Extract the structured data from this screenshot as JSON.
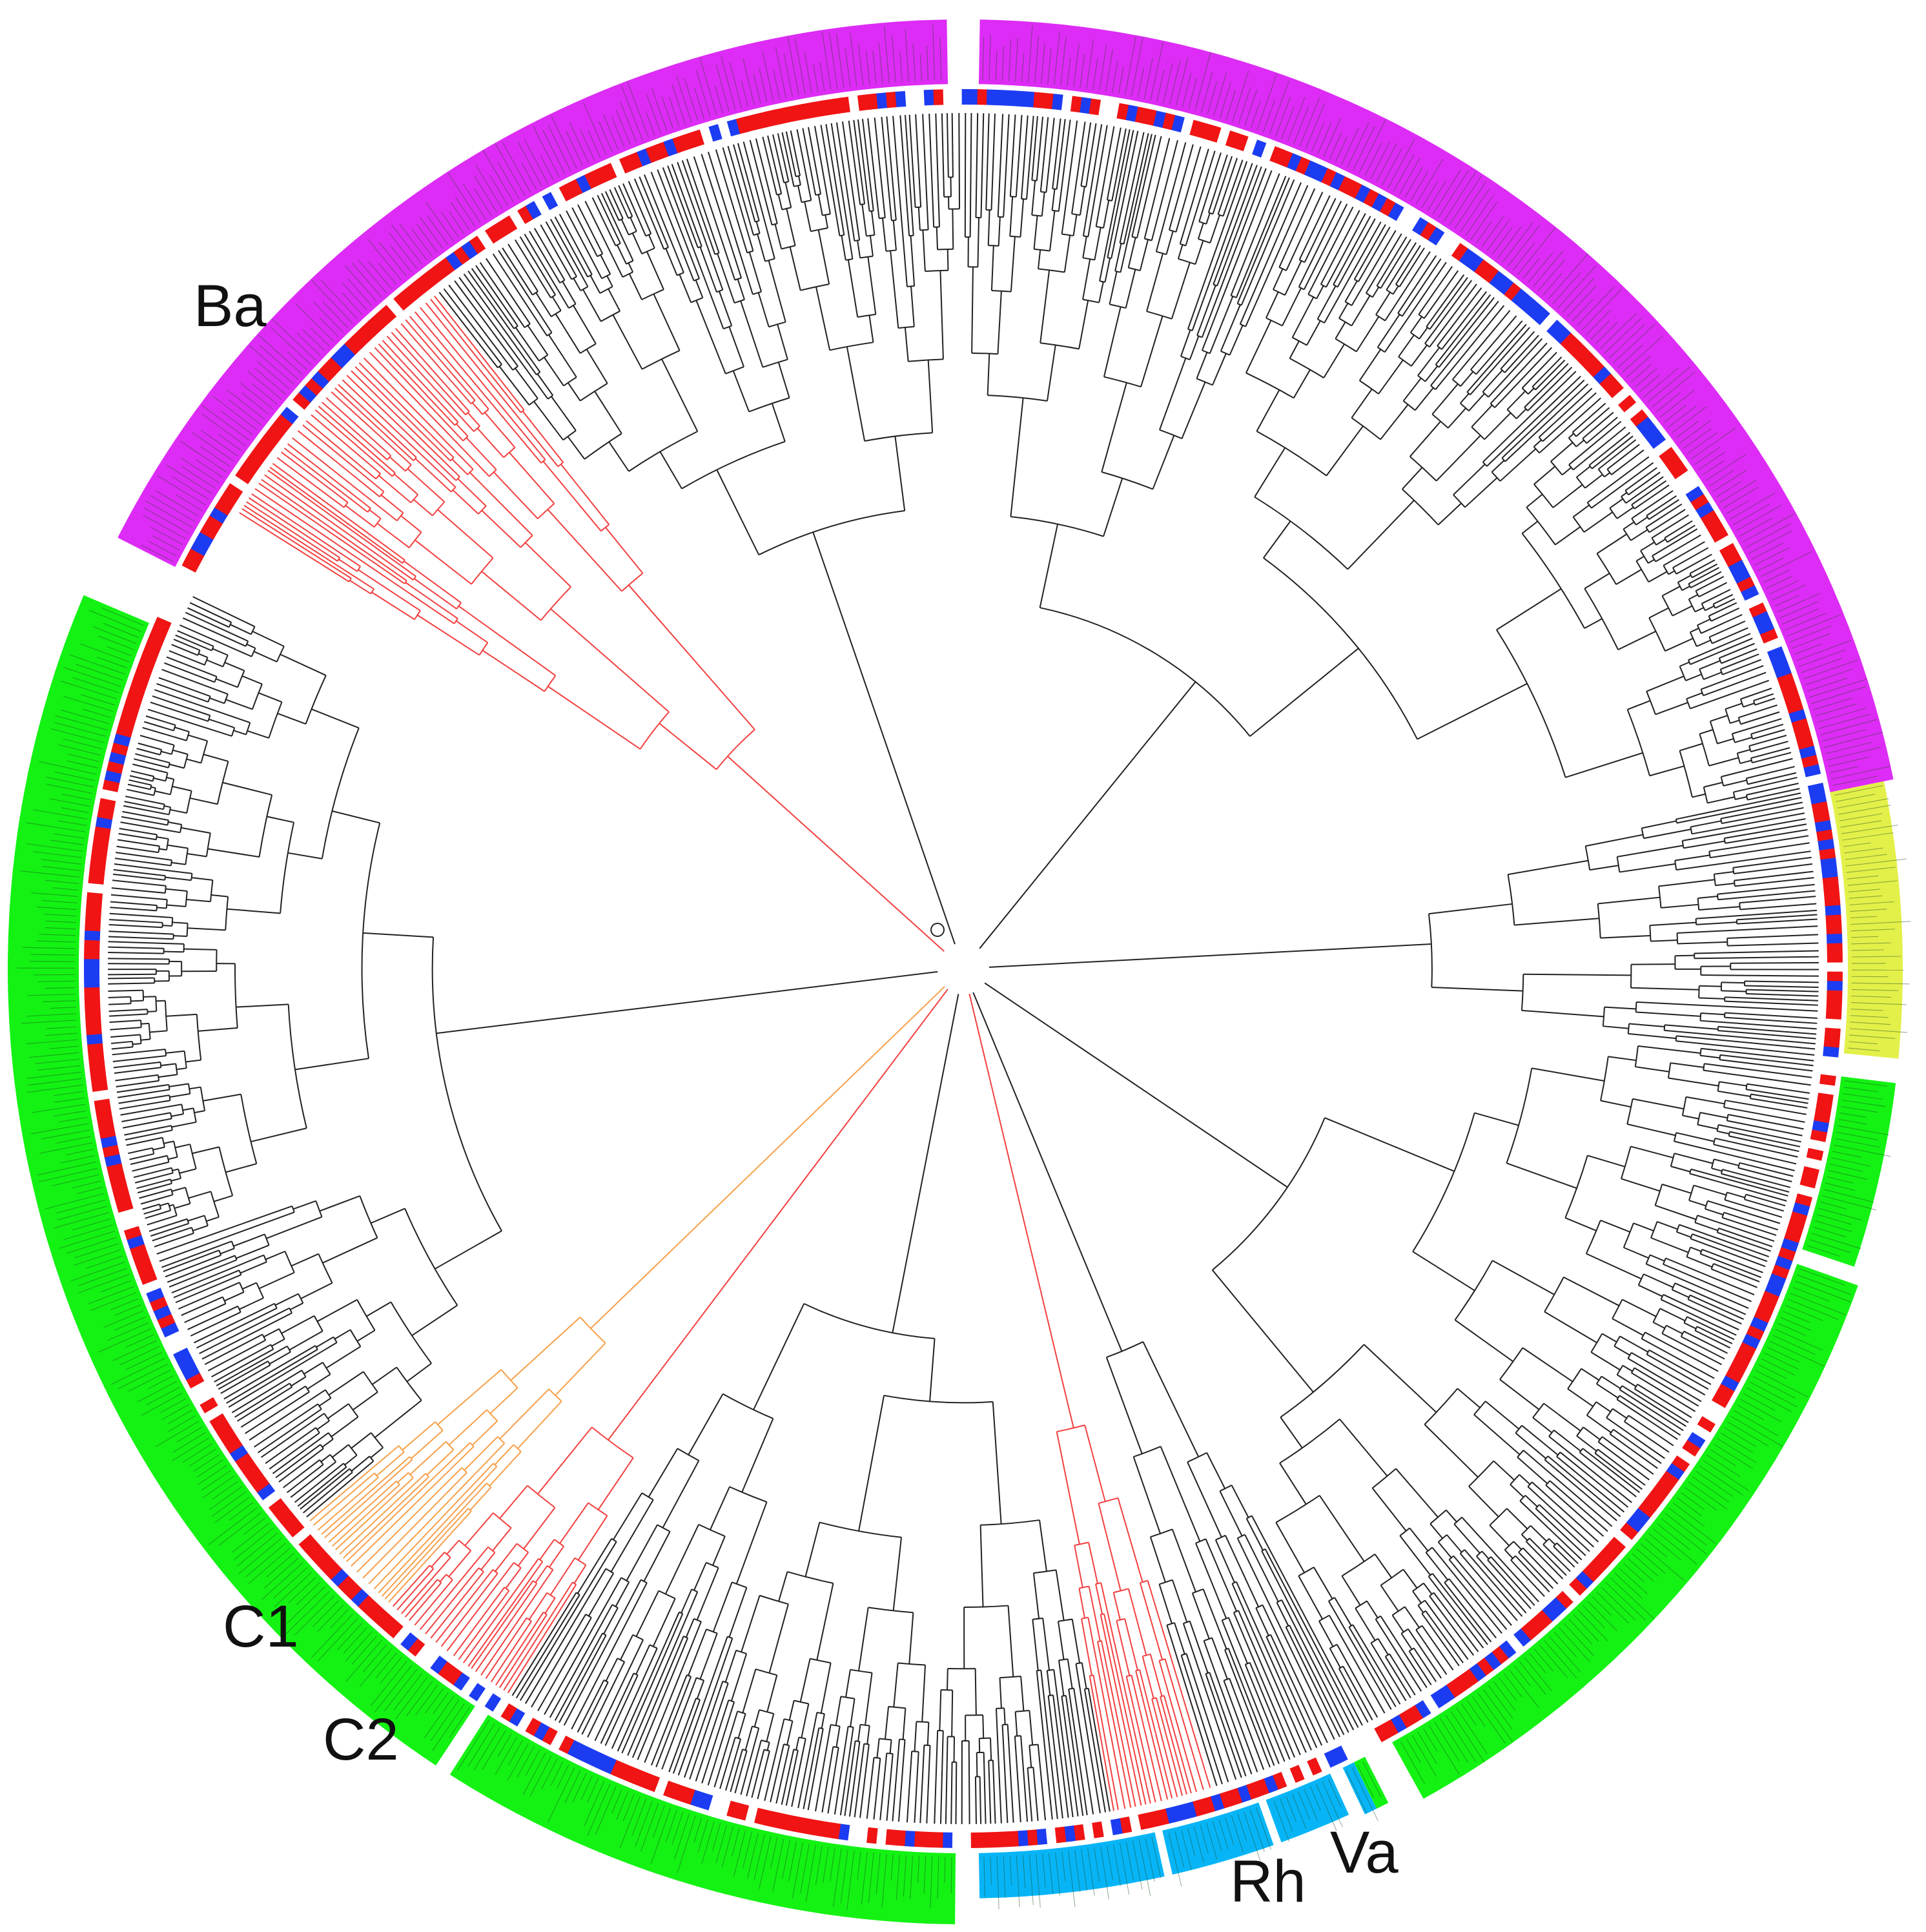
{
  "figure": {
    "type": "circular phylogenetic tree",
    "clade_labels": {
      "ba": "Ba",
      "c1": "C1",
      "c2": "C2",
      "rh": "Rh",
      "va": "Va"
    },
    "colors": {
      "ba_band": "#dd2cf5",
      "yellow_band": "#e3f04a",
      "green_band": "#13f213",
      "rh_band": "#07b5f7",
      "va_band_a": "#13f213",
      "va_band_b": "#07b5f7",
      "tick_red": "#f01414",
      "tick_blue": "#1c3cf2",
      "branch_black": "#222222",
      "branch_red": "#f24040",
      "branch_orange": "#f7a04a"
    }
  }
}
